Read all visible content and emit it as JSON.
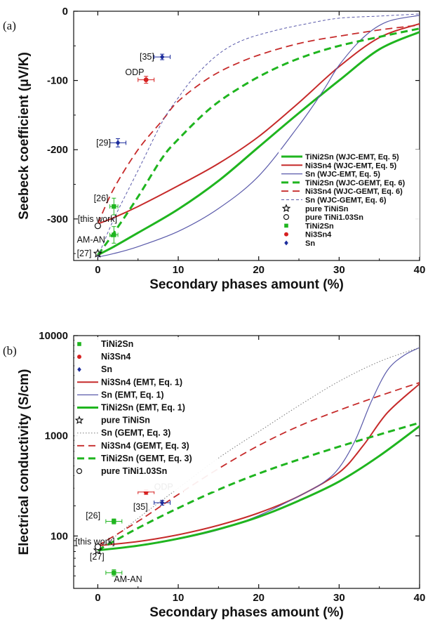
{
  "chart_data": [
    {
      "panel_label": "(a)",
      "type": "line",
      "xlabel": "Secondary phases amount (%)",
      "ylabel": "Seebeck coefficient (μV/K)",
      "xlim": [
        -3,
        40
      ],
      "ylim": [
        -360,
        0
      ],
      "xticks": [
        0,
        10,
        20,
        30,
        40
      ],
      "yticks": [
        0,
        -100,
        -200,
        -300
      ],
      "legend_position": "lower-right",
      "series": [
        {
          "name": "TiNi2Sn (WJC-EMT, Eq. 5)",
          "color": "#1fb51f",
          "style": "solid",
          "width": 3,
          "x": [
            0,
            2,
            5,
            10,
            15,
            20,
            25,
            30,
            35,
            40
          ],
          "y": [
            -352,
            -340,
            -320,
            -286,
            -245,
            -196,
            -147,
            -100,
            -55,
            -30
          ]
        },
        {
          "name": "Ni3Sn4 (WJC-EMT, Eq. 5)",
          "color": "#c62a2a",
          "style": "solid",
          "width": 2,
          "x": [
            0,
            2,
            5,
            10,
            15,
            20,
            25,
            30,
            35,
            40
          ],
          "y": [
            -307,
            -298,
            -282,
            -252,
            -220,
            -181,
            -132,
            -80,
            -38,
            -18
          ]
        },
        {
          "name": "Sn (WJC-EMT, Eq. 5)",
          "color": "#5a5aaa",
          "style": "solid",
          "width": 1.2,
          "x": [
            0,
            2,
            5,
            10,
            15,
            20,
            25,
            28,
            30,
            33,
            36,
            40
          ],
          "y": [
            -355,
            -350,
            -340,
            -318,
            -285,
            -238,
            -165,
            -115,
            -78,
            -38,
            -15,
            -6
          ]
        },
        {
          "name": "TiNi2Sn (WJC-GEMT, Eq. 6)",
          "color": "#1fb51f",
          "style": "dashed",
          "width": 3,
          "x": [
            0,
            2,
            5,
            8,
            10,
            14,
            18,
            22,
            26,
            30,
            35,
            40
          ],
          "y": [
            -352,
            -320,
            -268,
            -212,
            -185,
            -140,
            -108,
            -83,
            -64,
            -50,
            -37,
            -25
          ]
        },
        {
          "name": "Ni3Sn4 (WJC-GEMT, Eq. 6)",
          "color": "#c62a2a",
          "style": "dashed",
          "width": 1.8,
          "x": [
            0,
            2,
            5,
            8,
            10,
            14,
            18,
            22,
            26,
            30,
            35,
            40
          ],
          "y": [
            -307,
            -256,
            -200,
            -158,
            -130,
            -95,
            -72,
            -56,
            -44,
            -36,
            -27,
            -20
          ]
        },
        {
          "name": "Sn (WJC-GEMT, Eq. 6)",
          "color": "#5a5aaa",
          "style": "dashed-fine",
          "width": 1,
          "x": [
            0,
            2,
            5,
            8,
            10,
            12,
            15,
            18,
            22,
            26,
            30,
            35,
            40
          ],
          "y": [
            -355,
            -300,
            -230,
            -160,
            -125,
            -95,
            -62,
            -42,
            -28,
            -18,
            -10,
            -7,
            -4
          ]
        }
      ],
      "markers": [
        {
          "name": "pure TiNiSn",
          "shape": "star",
          "color": "#111111",
          "x": 0,
          "y": -350
        },
        {
          "name": "pure TiNi1.03Sn",
          "shape": "circle-open",
          "color": "#111111",
          "x": 0,
          "y": -310
        },
        {
          "name": "TiNi2Sn",
          "shape": "square",
          "color": "#1fb51f",
          "points": [
            {
              "x": 2,
              "y": -282,
              "xerr": 0.5,
              "yerr": 12
            },
            {
              "x": 2,
              "y": -323,
              "xerr": 0.5,
              "yerr": 12
            }
          ]
        },
        {
          "name": "Ni3Sn4",
          "shape": "circle",
          "color": "#d62020",
          "points": [
            {
              "x": 6,
              "y": -99,
              "xerr": 1,
              "yerr": 5
            }
          ]
        },
        {
          "name": "Sn",
          "shape": "diamond",
          "color": "#1c2c9c",
          "points": [
            {
              "x": 2.5,
              "y": -190,
              "xerr": 1,
              "yerr": 6
            },
            {
              "x": 8,
              "y": -66,
              "xerr": 1,
              "yerr": 4
            }
          ]
        }
      ],
      "annotations": [
        {
          "text": "[35]",
          "x": 5.2,
          "y": -66
        },
        {
          "text": "ODP",
          "x": 3.4,
          "y": -88
        },
        {
          "text": "[29]",
          "x": -0.2,
          "y": -190
        },
        {
          "text": "[26]",
          "x": -0.5,
          "y": -270
        },
        {
          "text": "[this work]",
          "x": -2.5,
          "y": -300
        },
        {
          "text": "AM-AN",
          "x": -2.6,
          "y": -330
        },
        {
          "text": "[27]",
          "x": -2.6,
          "y": -350
        }
      ]
    },
    {
      "panel_label": "(b)",
      "type": "line",
      "yscale": "log",
      "xlabel": "Secondary phases amount (%)",
      "ylabel": "Electrical conductivity (S/cm)",
      "xlim": [
        -3,
        40
      ],
      "ylim": [
        30,
        10000
      ],
      "xticks": [
        0,
        10,
        20,
        30,
        40
      ],
      "yticks": [
        100,
        1000,
        10000
      ],
      "legend_position": "upper-left",
      "series": [
        {
          "name": "Ni3Sn4 (EMT, Eq. 1)",
          "color": "#c62a2a",
          "style": "solid",
          "width": 2,
          "x": [
            0,
            5,
            10,
            15,
            20,
            25,
            30,
            33,
            36,
            40
          ],
          "y": [
            80,
            88,
            103,
            128,
            170,
            250,
            430,
            800,
            1700,
            3300
          ]
        },
        {
          "name": "Sn (EMT, Eq. 1)",
          "color": "#5a5aaa",
          "style": "solid",
          "width": 1.2,
          "x": [
            0,
            5,
            10,
            15,
            20,
            25,
            28,
            30,
            32,
            34,
            36,
            38,
            40
          ],
          "y": [
            72,
            80,
            93,
            115,
            160,
            250,
            340,
            480,
            900,
            2200,
            4500,
            6300,
            7600
          ]
        },
        {
          "name": "TiNi2Sn (EMT, Eq. 1)",
          "color": "#1fb51f",
          "style": "solid",
          "width": 3,
          "x": [
            0,
            5,
            10,
            15,
            20,
            25,
            30,
            35,
            40
          ],
          "y": [
            72,
            80,
            94,
            117,
            155,
            225,
            350,
            630,
            1250
          ]
        },
        {
          "name": "Sn (GEMT, Eq. 3)",
          "color": "#7a7a7a",
          "style": "dotted",
          "width": 1,
          "x": [
            0,
            5,
            10,
            15,
            20,
            25,
            30,
            35,
            40
          ],
          "y": [
            72,
            150,
            300,
            600,
            1100,
            2000,
            3500,
            5500,
            7600
          ]
        },
        {
          "name": "Ni3Sn4 (GEMT, Eq. 3)",
          "color": "#c62a2a",
          "style": "dashed",
          "width": 1.8,
          "x": [
            0,
            5,
            10,
            15,
            20,
            25,
            30,
            35,
            40
          ],
          "y": [
            80,
            140,
            260,
            470,
            800,
            1250,
            1800,
            2500,
            3400
          ]
        },
        {
          "name": "TiNi2Sn (GEMT, Eq. 3)",
          "color": "#1fb51f",
          "style": "dashed",
          "width": 3,
          "x": [
            0,
            5,
            10,
            15,
            20,
            25,
            30,
            35,
            40
          ],
          "y": [
            72,
            120,
            190,
            290,
            420,
            580,
            780,
            1030,
            1350
          ]
        }
      ],
      "markers": [
        {
          "name": "TiNi2Sn",
          "shape": "square",
          "color": "#1fb51f",
          "points": [
            {
              "x": 2,
              "y": 140,
              "xerr": 1,
              "yerr": 8
            },
            {
              "x": 2,
              "y": 43,
              "xerr": 1,
              "yerr": 3
            }
          ]
        },
        {
          "name": "Ni3Sn4",
          "shape": "circle",
          "color": "#d62020",
          "points": [
            {
              "x": 6,
              "y": 275,
              "xerr": 1,
              "yerr": 15
            }
          ]
        },
        {
          "name": "Sn",
          "shape": "diamond",
          "color": "#1c2c9c",
          "points": [
            {
              "x": 8,
              "y": 215,
              "xerr": 1,
              "yerr": 12
            }
          ]
        },
        {
          "name": "pure TiNiSn",
          "shape": "star",
          "color": "#111111",
          "x": 0,
          "y": 72
        },
        {
          "name": "pure TiNi1.03Sn",
          "shape": "circle-open",
          "color": "#111111",
          "x": 0,
          "y": 78
        }
      ],
      "annotations": [
        {
          "text": "ODP",
          "x": 7,
          "y": 310
        },
        {
          "text": "[35]",
          "x": 4.4,
          "y": 195
        },
        {
          "text": "[26]",
          "x": -1.5,
          "y": 160
        },
        {
          "text": "[this work]",
          "x": -2.8,
          "y": 88
        },
        {
          "text": "[27]",
          "x": -1,
          "y": 62
        },
        {
          "text": "AM-AN",
          "x": 2,
          "y": 37
        }
      ]
    }
  ]
}
